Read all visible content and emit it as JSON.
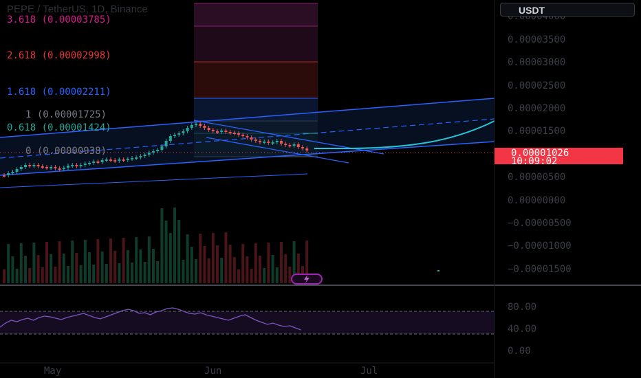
{
  "header": {
    "symbol_title": "PEPE / TetherUS, 1D, Binance",
    "currency_button": "USDT"
  },
  "fib_levels": [
    {
      "label": "3.618 (0.00003785)",
      "color": "#d81b8c"
    },
    {
      "label": "2.618 (0.00002998)",
      "color": "#e53935"
    },
    {
      "label": "1.618 (0.00002211)",
      "color": "#2962ff"
    },
    {
      "label": "1 (0.00001725)",
      "color": "#787b86"
    },
    {
      "label": "0.618 (0.00001424)",
      "color": "#26a69a"
    },
    {
      "label": "0 (0.00000938)",
      "color": "#787b86"
    }
  ],
  "price_axis": {
    "labels": [
      "0.00004000",
      "0.00003500",
      "0.00003000",
      "0.00002500",
      "0.00002000",
      "0.00001500",
      "0.00000500",
      "0.00000000",
      "−0.00000500",
      "−0.00001000",
      "−0.00001500"
    ]
  },
  "last_price": {
    "price": "0.00001026",
    "countdown": "10:09:02",
    "color": "#f23645"
  },
  "rsi_axis": {
    "labels": [
      "80.00",
      "40.00",
      "0.00"
    ]
  },
  "time_axis": {
    "labels": [
      "May",
      "Jun",
      "Jul"
    ]
  },
  "colors": {
    "up": "#26a69a",
    "down": "#ef5350",
    "channel": "#2962ff",
    "curve": "#26c6da",
    "rsi": "#7e57c2"
  },
  "icons": [
    "alert-lightning-icon"
  ]
}
